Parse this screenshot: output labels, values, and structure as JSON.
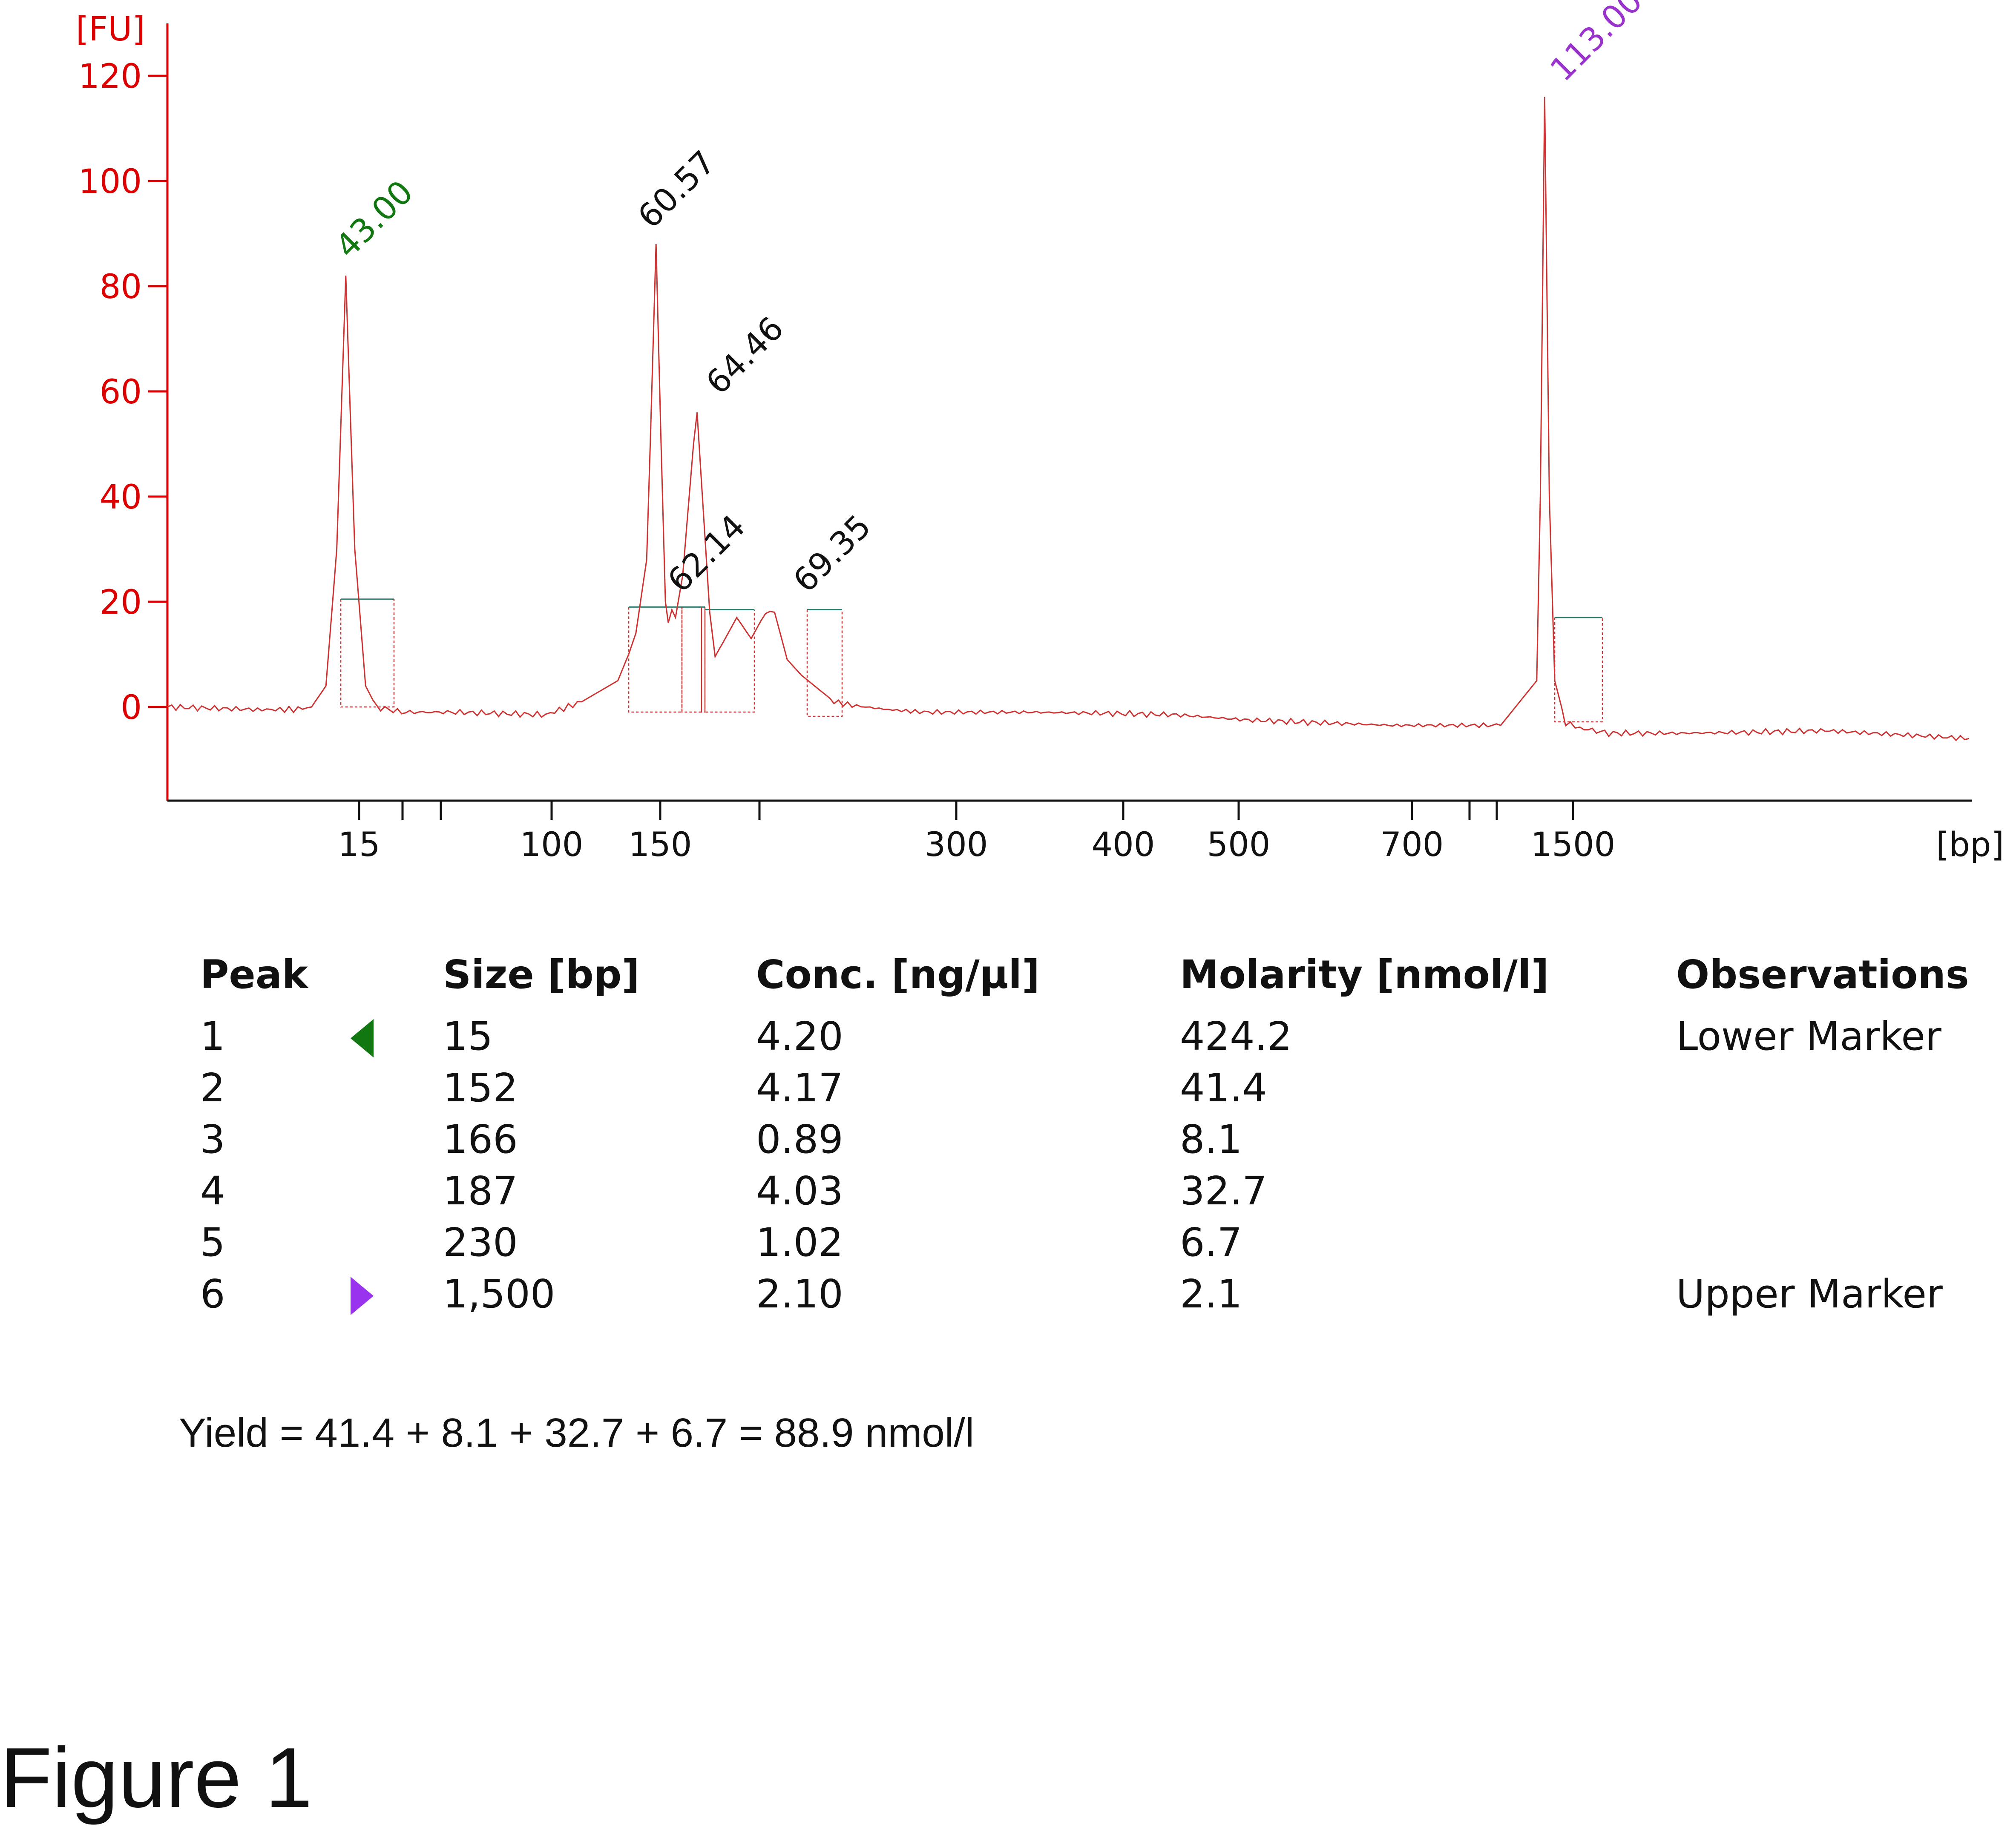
{
  "chart_data": {
    "type": "line",
    "y_unit_label": "[FU]",
    "x_unit_label": "[bp]",
    "yticks": [
      0,
      20,
      40,
      60,
      80,
      100,
      120
    ],
    "ylim": [
      -18,
      132
    ],
    "xticks": [
      {
        "label": "15",
        "value": 15
      },
      {
        "label": "",
        "value": 18
      },
      {
        "label": "",
        "value": 21
      },
      {
        "label": "100",
        "value": 100
      },
      {
        "label": "150",
        "value": 150
      },
      {
        "label": "",
        "value": 200
      },
      {
        "label": "300",
        "value": 300
      },
      {
        "label": "400",
        "value": 400
      },
      {
        "label": "500",
        "value": 500
      },
      {
        "label": "700",
        "value": 700
      },
      {
        "label": "",
        "value": 800
      },
      {
        "label": "",
        "value": 1000
      },
      {
        "label": "1500",
        "value": 1500
      }
    ],
    "trace_color": "#cc3333",
    "axis_color": "#dd0000",
    "series": [
      {
        "x_migration": [
          0,
          25,
          35,
          40,
          44,
          47,
          49.5,
          52,
          55,
          58,
          65,
          80,
          105,
          115,
          125,
          128,
          130,
          133,
          134,
          135.6,
          137,
          138.2,
          139,
          140,
          141,
          143,
          146,
          147,
          148,
          150.5,
          152,
          154,
          158,
          162,
          166,
          168.5,
          172,
          176,
          185,
          190,
          200,
          210,
          240,
          260,
          280,
          300,
          320,
          340,
          370,
          380,
          381,
          382.2,
          383.5,
          385,
          388,
          392,
          400,
          420,
          440,
          460,
          500
        ],
        "fu": [
          0,
          -0.5,
          -0.5,
          0,
          4,
          30,
          82,
          30,
          4,
          0,
          -1,
          -1,
          -1.5,
          1,
          5,
          10,
          14,
          28,
          50,
          88,
          50,
          20,
          16,
          19,
          17,
          25,
          50,
          56,
          45,
          18,
          10,
          12,
          17,
          13,
          18,
          18,
          9,
          6,
          1,
          0.3,
          -0.5,
          -1,
          -1,
          -1.2,
          -1.5,
          -2.5,
          -3,
          -3.5,
          -3.5,
          5,
          40,
          116,
          40,
          5,
          -3,
          -4,
          -5,
          -5,
          -4.8,
          -4.5,
          -6
        ]
      }
    ],
    "peak_labels": [
      {
        "text": "43.00",
        "color": "#117711"
      },
      {
        "text": "60.57",
        "color": "#111111"
      },
      {
        "text": "62.14",
        "color": "#111111"
      },
      {
        "text": "64.46",
        "color": "#111111"
      },
      {
        "text": "69.35",
        "color": "#111111"
      },
      {
        "text": "113.00",
        "color": "#9933cc"
      }
    ]
  },
  "table": {
    "headers": {
      "peak": "Peak",
      "size": "Size [bp]",
      "conc": "Conc. [ng/µl]",
      "molarity": "Molarity [nmol/l]",
      "observations": "Observations"
    },
    "rows": [
      {
        "peak": "1",
        "marker": "lower",
        "size": "15",
        "conc": "4.20",
        "molarity": "424.2",
        "observations": "Lower Marker"
      },
      {
        "peak": "2",
        "marker": "",
        "size": "152",
        "conc": "4.17",
        "molarity": "41.4",
        "observations": ""
      },
      {
        "peak": "3",
        "marker": "",
        "size": "166",
        "conc": "0.89",
        "molarity": "8.1",
        "observations": ""
      },
      {
        "peak": "4",
        "marker": "",
        "size": "187",
        "conc": "4.03",
        "molarity": "32.7",
        "observations": ""
      },
      {
        "peak": "5",
        "marker": "",
        "size": "230",
        "conc": "1.02",
        "molarity": "6.7",
        "observations": ""
      },
      {
        "peak": "6",
        "marker": "upper",
        "size": "1,500",
        "conc": "2.10",
        "molarity": "2.1",
        "observations": "Upper Marker"
      }
    ],
    "marker_colors": {
      "lower": "#117711",
      "upper": "#9933ee"
    }
  },
  "yield_text": "Yield = 41.4 + 8.1 + 32.7 + 6.7 =  88.9 nmol/l",
  "figure_label": "Figure 1"
}
